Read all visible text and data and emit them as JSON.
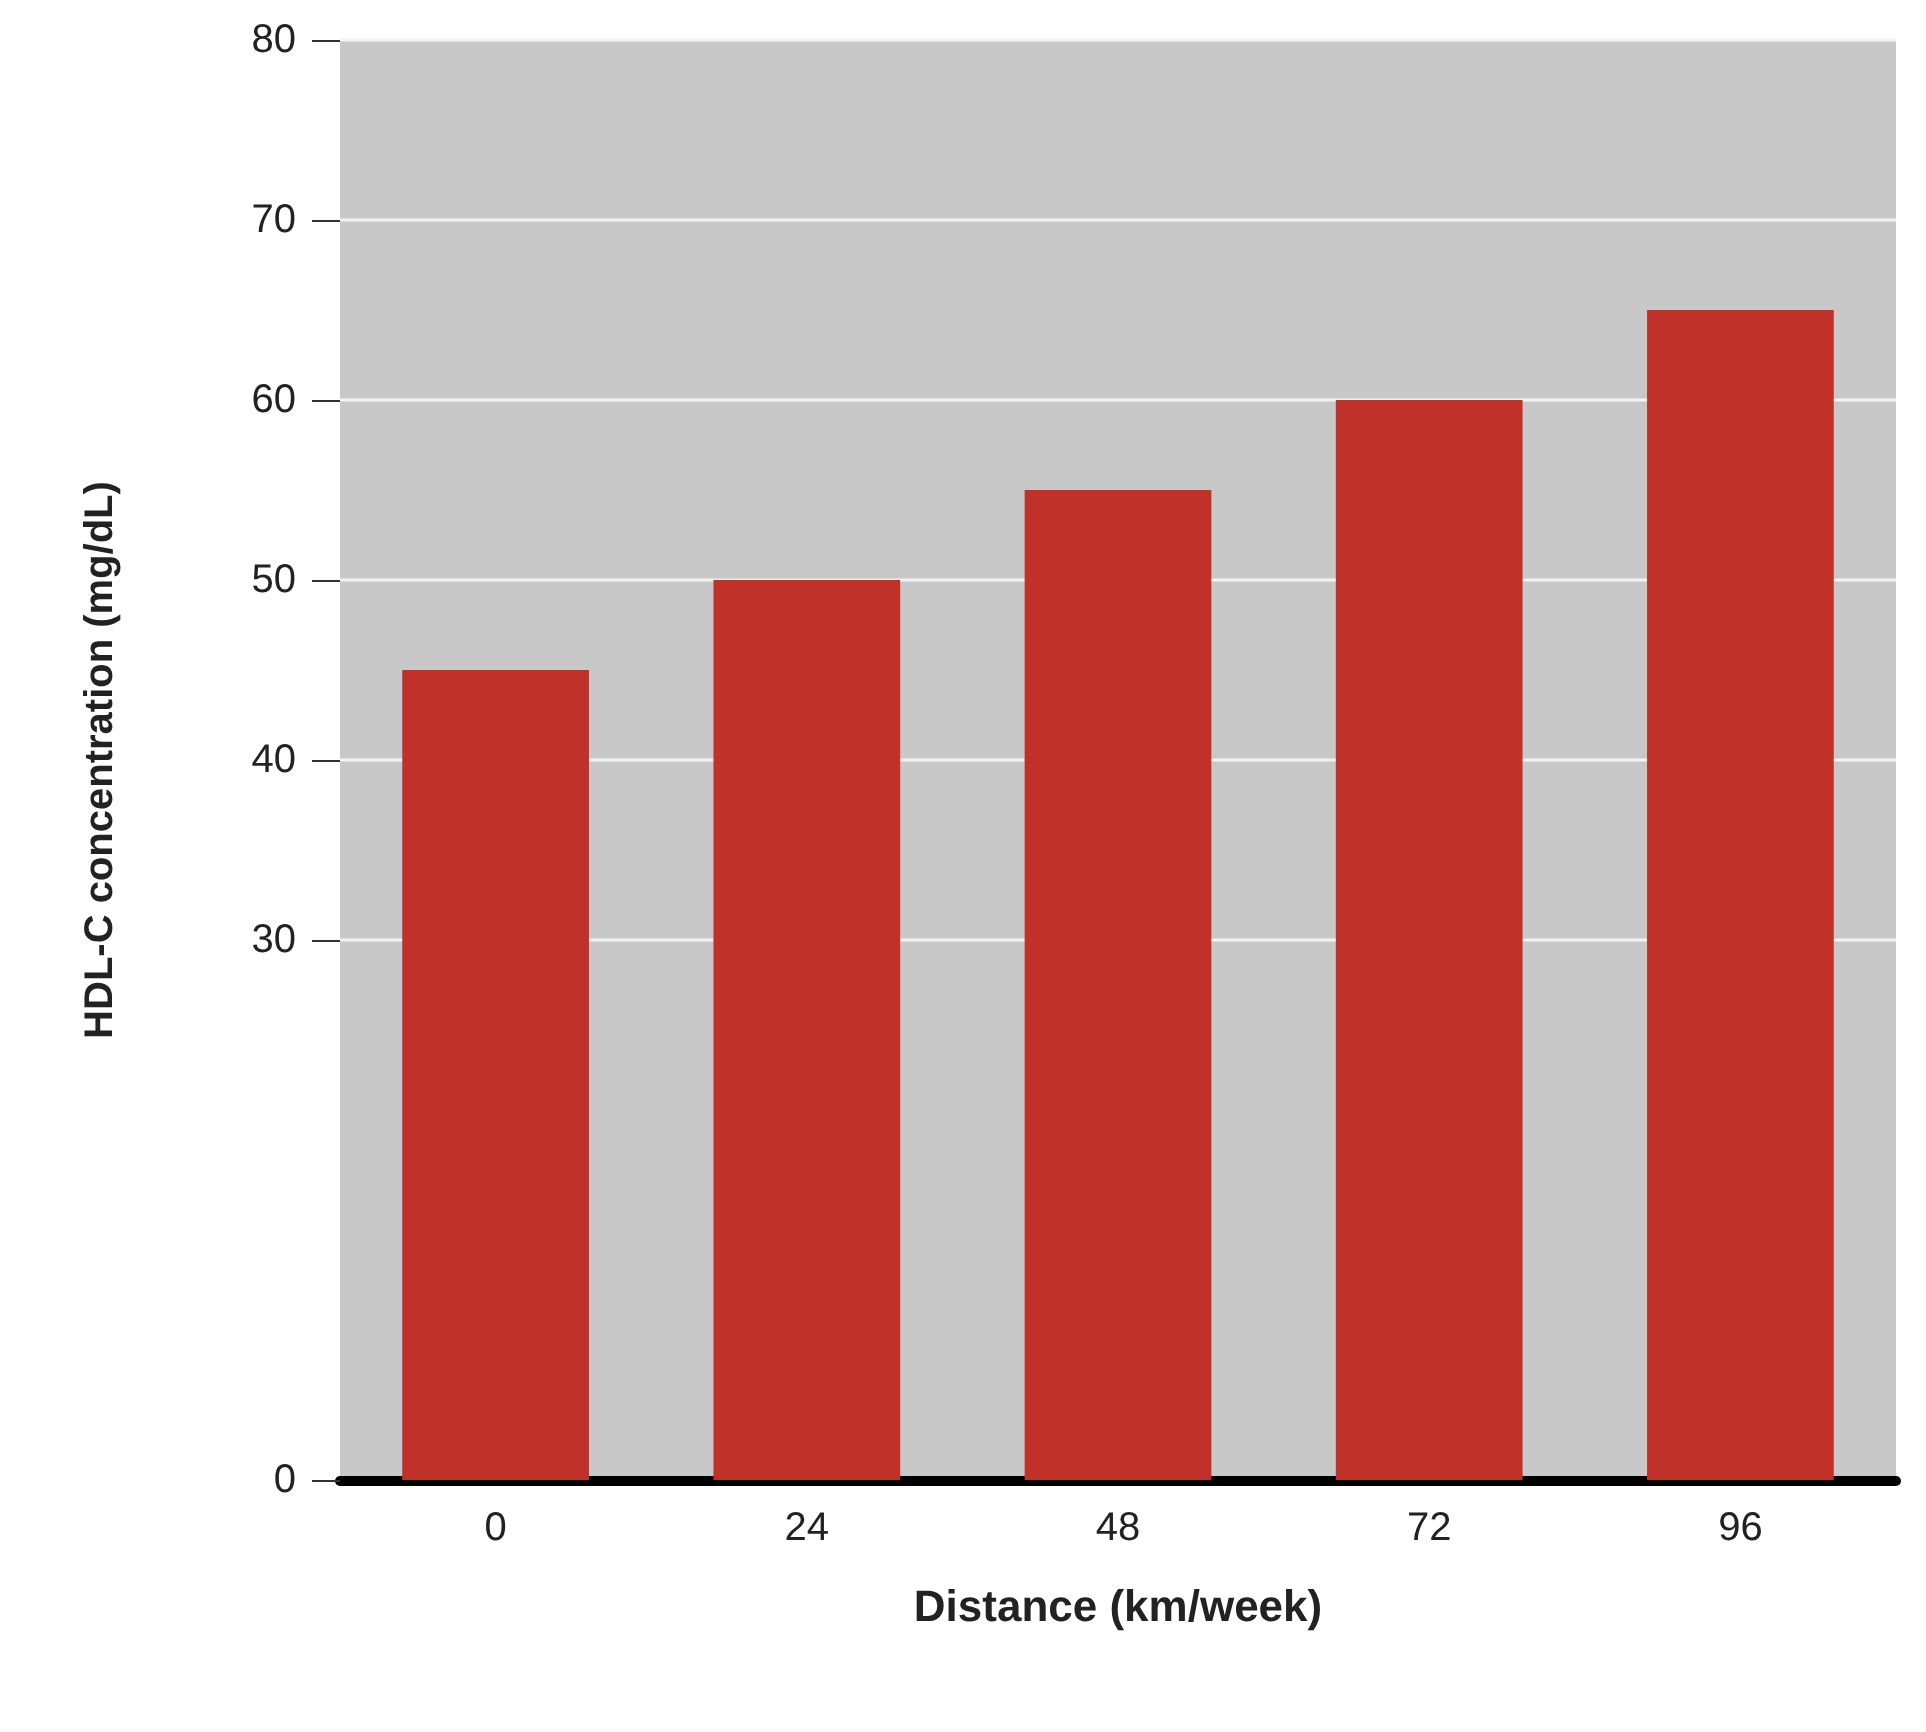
{
  "chart_data": {
    "type": "bar",
    "xlabel": "Distance (km/week)",
    "ylabel": "HDL-C concentration (mg/dL)",
    "categories": [
      "0",
      "24",
      "48",
      "72",
      "96"
    ],
    "values": [
      45,
      50,
      55,
      60,
      65
    ],
    "color": "#c0312a",
    "ylim": [
      0,
      80
    ],
    "yticks": [
      0,
      30,
      40,
      50,
      60,
      70,
      80
    ],
    "grid": "y"
  }
}
